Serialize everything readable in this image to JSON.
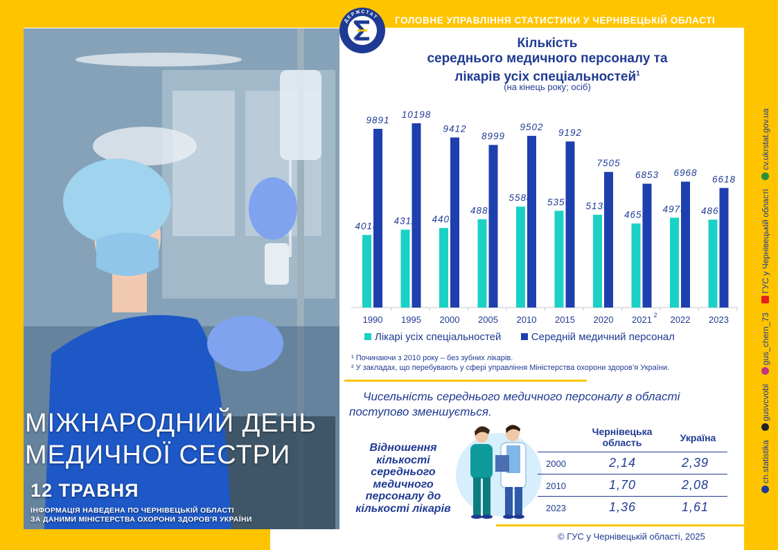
{
  "header": {
    "title": "ГОЛОВНЕ УПРАВЛІННЯ СТАТИСТИКИ У ЧЕРНІВЕЦЬКІЙ ОБЛАСТІ",
    "logo_text_top": "ДЕРЖСТАТ",
    "logo_text_bottom": "УКРАЇНИ"
  },
  "poster": {
    "title_line1": "МІЖНАРОДНИЙ ДЕНЬ",
    "title_line2": "МЕДИЧНОЇ СЕСТРИ",
    "date": "12 ТРАВНЯ",
    "note_line1": "ІНФОРМАЦІЯ НАВЕДЕНА ПО ЧЕРНІВЕЦЬКІЙ ОБЛАСТІ",
    "note_line2": "ЗА ДАНИМИ МІНІСТЕРСТВА ОХОРОНИ ЗДОРОВ'Я УКРАЇНИ"
  },
  "chart_header": {
    "title_line1": "Кількість",
    "title_line2": "середнього медичного персоналу та",
    "title_line3": "лікарів усіх спеціальностей",
    "title_sup": "1",
    "subtitle": "(на кінець року; осіб)"
  },
  "colors": {
    "accent": "#ffc400",
    "navy": "#1f3a93",
    "doctors": "#1bd1c6",
    "nurses": "#1e3fae"
  },
  "chart_data": {
    "type": "bar",
    "categories": [
      "1990",
      "1995",
      "2000",
      "2005",
      "2010",
      "2015",
      "2020",
      "2021",
      "2022",
      "2023"
    ],
    "category_sup": [
      "",
      "",
      "",
      "",
      "",
      "",
      "",
      "2",
      "",
      ""
    ],
    "series": [
      {
        "name": "Лікарі усіх спеціальностей",
        "color": "#1bd1c6",
        "values": [
          4018,
          4311,
          4403,
          4889,
          5588,
          5356,
          5135,
          4653,
          4973,
          4867
        ]
      },
      {
        "name": "Середній медичний персонал",
        "color": "#1e3fae",
        "values": [
          9891,
          10198,
          9412,
          8999,
          9502,
          9192,
          7505,
          6853,
          6968,
          6618
        ]
      }
    ],
    "ylim": [
      0,
      11500
    ],
    "grid": false,
    "legend": "bottom"
  },
  "footnotes": {
    "fn1": "¹ Починаючи з 2010 року – без зубних лікарів.",
    "fn2": "² У закладах, що перебувають у сфері управління Міністерства охорони здоров’я України."
  },
  "conclusion": {
    "line1": "Чисельність середнього медичного персоналу  в області",
    "line2": "поступово зменшується."
  },
  "ratio": {
    "title_lines": [
      "Відношення",
      "кількості",
      "середнього",
      "медичного",
      "персоналу до",
      "кількості лікарів"
    ],
    "header_region_line1": "Чернівецька",
    "header_region_line2": "область",
    "header_country": "Україна",
    "rows": [
      {
        "year": "2000",
        "region": "2,14",
        "country": "2,39"
      },
      {
        "year": "2010",
        "region": "1,70",
        "country": "2,08"
      },
      {
        "year": "2023",
        "region": "1,36",
        "country": "1,61"
      }
    ]
  },
  "footer": {
    "copyright": "© ГУС у Чернівецькій  області, 2025"
  },
  "social": [
    "ch.statistika",
    "gusvcvobl",
    "gus_chern_73",
    "ГУС у Чернівецькій області",
    "cv.ukrstat.gov.ua"
  ]
}
